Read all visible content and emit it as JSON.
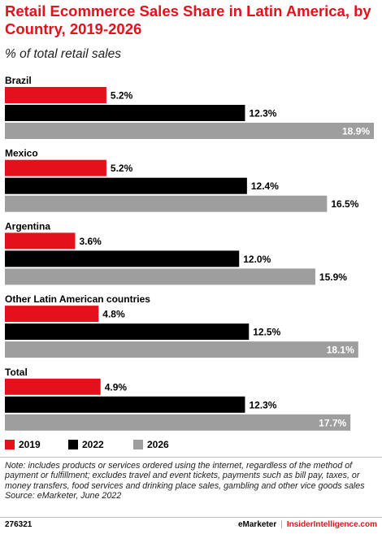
{
  "title": "Retail Ecommerce Sales Share in Latin America, by Country, 2019-2026",
  "subtitle": "% of total retail sales",
  "chart_data": {
    "type": "bar",
    "orientation": "horizontal",
    "title": "Retail Ecommerce Sales Share in Latin America, by Country, 2019-2026",
    "subtitle": "% of total retail sales",
    "categories": [
      "Brazil",
      "Mexico",
      "Argentina",
      "Other Latin American countries",
      "Total"
    ],
    "series": [
      {
        "name": "2019",
        "color": "#e4111c",
        "values": [
          5.2,
          5.2,
          3.6,
          4.8,
          4.9
        ],
        "labels": [
          "5.2%",
          "5.2%",
          "3.6%",
          "4.8%",
          "4.9%"
        ]
      },
      {
        "name": "2022",
        "color": "#000000",
        "values": [
          12.3,
          12.4,
          12.0,
          12.5,
          12.3
        ],
        "labels": [
          "12.3%",
          "12.4%",
          "12.0%",
          "12.5%",
          "12.3%"
        ]
      },
      {
        "name": "2026",
        "color": "#9e9e9e",
        "values": [
          18.9,
          16.5,
          15.9,
          18.1,
          17.7
        ],
        "labels": [
          "18.9%",
          "16.5%",
          "15.9%",
          "18.1%",
          "17.7%"
        ]
      }
    ],
    "xlim": [
      0,
      18.9
    ],
    "grid": false,
    "legend_position": "bottom-left"
  },
  "legend": [
    "2019",
    "2022",
    "2026"
  ],
  "note": "Note: includes products or services ordered using the internet, regardless of the method of payment or fulfillment; excludes travel and event tickets, payments such as bill pay, taxes, or money transfers, food services and drinking place sales, gambling and other vice goods sales",
  "source": "Source: eMarketer, June 2022",
  "footer": {
    "chart_id": "276321",
    "brand": "eMarketer",
    "separator": "|",
    "site": "InsiderIntelligence.com"
  }
}
